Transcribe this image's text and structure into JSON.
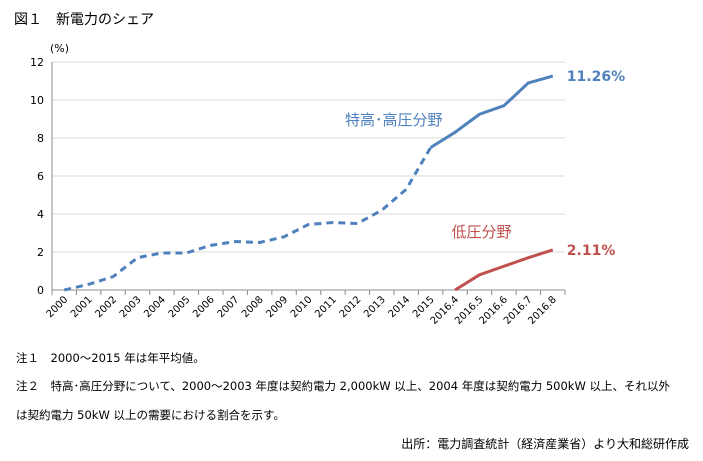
{
  "title": "図１　新電力のシェア",
  "unit": "(%)",
  "notes": [
    "注１　2000～2015 年は年平均値。",
    "注２　特高･高圧分野について、2000～2003 年度は契約電力 2,000kW 以上、2004 年度は契約電力 500kW 以上、それ以外",
    "は契約電力 50kW 以上の需要における割合を示す。"
  ],
  "source": "出所：電力調査統計（経済産業省）より大和総研作成",
  "chart_data": {
    "type": "line",
    "title": "図１　新電力のシェア",
    "ylabel": "(%)",
    "ylim": [
      0,
      12
    ],
    "yticks": [
      "0",
      "2",
      "4",
      "6",
      "8",
      "10",
      "12"
    ],
    "grid": true,
    "categories": [
      "2000",
      "2001",
      "2002",
      "2003",
      "2004",
      "2005",
      "2006",
      "2007",
      "2008",
      "2009",
      "2010",
      "2011",
      "2012",
      "2013",
      "2014",
      "2015",
      "2016.4",
      "2016.5",
      "2016.6",
      "2016.7",
      "2016.8"
    ],
    "series": [
      {
        "name": "特高･高圧分野",
        "color": "#4f81bd",
        "values": [
          0.0,
          0.3,
          0.7,
          1.7,
          1.95,
          1.95,
          2.35,
          2.55,
          2.5,
          2.8,
          3.45,
          3.55,
          3.5,
          4.2,
          5.3,
          7.5,
          8.3,
          9.25,
          9.7,
          10.9,
          11.26
        ],
        "dashed_until_index": 15,
        "end_label": "11.26%"
      },
      {
        "name": "低圧分野",
        "color": "#c0504d",
        "values": [
          null,
          null,
          null,
          null,
          null,
          null,
          null,
          null,
          null,
          null,
          null,
          null,
          null,
          null,
          null,
          null,
          0.0,
          0.8,
          1.25,
          1.7,
          2.11
        ],
        "end_label": "2.11%"
      }
    ]
  }
}
